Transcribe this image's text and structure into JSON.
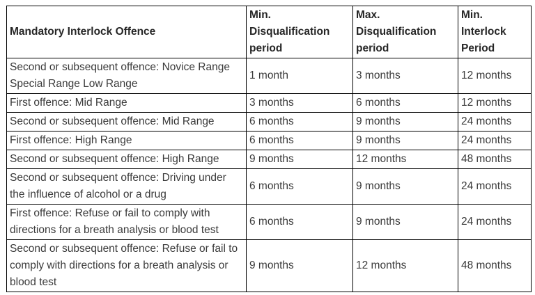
{
  "colors": {
    "background": "#ffffff",
    "border": "#000000",
    "header_text": "#262626",
    "body_text": "#3a3a3a"
  },
  "table": {
    "headers": {
      "offence": "Mandatory Interlock Offence",
      "min_disqualification": "Min.\nDisqualification\nperiod",
      "max_disqualification": "Max.\nDisqualification\nperiod",
      "min_interlock": "Min.\nInterlock\nPeriod"
    },
    "rows": [
      {
        "offence": "Second or subsequent offence: Novice Range\nSpecial Range Low Range",
        "min_disqualification": "1 month",
        "max_disqualification": "3 months",
        "min_interlock": "12 months"
      },
      {
        "offence": "First offence: Mid Range",
        "min_disqualification": "3 months",
        "max_disqualification": "6 months",
        "min_interlock": "12 months"
      },
      {
        "offence": "Second or subsequent offence: Mid Range",
        "min_disqualification": "6 months",
        "max_disqualification": "9 months",
        "min_interlock": "24 months"
      },
      {
        "offence": "First offence: High Range",
        "min_disqualification": "6 months",
        "max_disqualification": "9 months",
        "min_interlock": "24 months"
      },
      {
        "offence": "Second or subsequent offence: High Range",
        "min_disqualification": "9 months",
        "max_disqualification": "12 months",
        "min_interlock": "48 months"
      },
      {
        "offence": "Second or subsequent offence: Driving under\nthe influence of alcohol or a drug",
        "min_disqualification": "6 months",
        "max_disqualification": "9 months",
        "min_interlock": "24 months"
      },
      {
        "offence": "First offence: Refuse or fail to comply with\ndirections for a breath analysis or blood test",
        "min_disqualification": "6 months",
        "max_disqualification": "9 months",
        "min_interlock": "24 months"
      },
      {
        "offence": "Second or subsequent offence: Refuse or fail to\ncomply with directions for a breath analysis or\nblood test",
        "min_disqualification": "9 months",
        "max_disqualification": "12 months",
        "min_interlock": "48 months"
      }
    ]
  }
}
